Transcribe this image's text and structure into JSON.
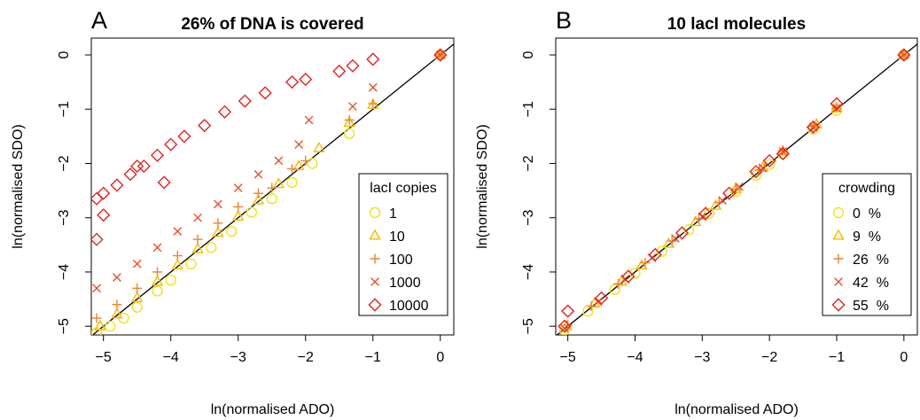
{
  "chart_data": [
    {
      "type": "scatter",
      "panel_label": "A",
      "title": "26% of DNA is covered",
      "x_label": "ln(normalised ADO)",
      "y_label": "ln(normalised SDO)",
      "xlim": [
        -5.18,
        0.2
      ],
      "ylim": [
        -5.16,
        0.31
      ],
      "xticks": [
        {
          "value": -5,
          "label": "−5"
        },
        {
          "value": -4,
          "label": "−4"
        },
        {
          "value": -3,
          "label": "−3"
        },
        {
          "value": -2,
          "label": "−2"
        },
        {
          "value": -1,
          "label": "−1"
        },
        0
      ],
      "yticks": [
        {
          "value": -5,
          "label": "−5"
        },
        {
          "value": -4,
          "label": "−4"
        },
        {
          "value": -3,
          "label": "−3"
        },
        {
          "value": -2,
          "label": "−2"
        },
        {
          "value": -1,
          "label": "−1"
        },
        0
      ],
      "reference_line": "identity",
      "legend_title": "lacI copies",
      "legend_position": "right",
      "series": [
        {
          "name": "1",
          "color": "#f2e21a",
          "marker": "circle",
          "x": [
            -5.1,
            -4.9,
            -4.7,
            -4.5,
            -4.2,
            -4,
            -3.7,
            -3.4,
            -3.1,
            -2.8,
            -2.5,
            -2.2,
            -1.9,
            -1.35,
            0
          ],
          "y": [
            -5.12,
            -5,
            -4.85,
            -4.65,
            -4.35,
            -4.15,
            -3.85,
            -3.55,
            -3.25,
            -2.9,
            -2.65,
            -2.35,
            -2,
            -1.45,
            0
          ]
        },
        {
          "name": "10",
          "color": "#f5b800",
          "marker": "triangle",
          "x": [
            -5.05,
            -4.8,
            -4.5,
            -4.2,
            -3.9,
            -3.6,
            -3.3,
            -3,
            -2.7,
            -2.4,
            -2.1,
            -1.8,
            -1.35,
            -1,
            0
          ],
          "y": [
            -5,
            -4.78,
            -4.48,
            -4.18,
            -3.88,
            -3.58,
            -3.28,
            -2.98,
            -2.68,
            -2.38,
            -2.05,
            -1.72,
            -1.25,
            -0.92,
            0
          ]
        },
        {
          "name": "100",
          "color": "#f08030",
          "marker": "plus",
          "x": [
            -5.1,
            -4.8,
            -4.5,
            -4.2,
            -3.9,
            -3.6,
            -3.3,
            -3,
            -2.7,
            -2.5,
            -2.2,
            -2,
            -1.35,
            -1,
            0
          ],
          "y": [
            -4.85,
            -4.6,
            -4.3,
            -4,
            -3.7,
            -3.4,
            -3.1,
            -2.8,
            -2.55,
            -2.45,
            -2.1,
            -1.95,
            -1.2,
            -0.9,
            0
          ]
        },
        {
          "name": "1000",
          "color": "#e8502a",
          "marker": "cross",
          "x": [
            -5.1,
            -4.8,
            -4.5,
            -4.2,
            -3.9,
            -3.6,
            -3.3,
            -3,
            -2.7,
            -2.4,
            -2.1,
            -1.95,
            -1.3,
            -1,
            0
          ],
          "y": [
            -4.3,
            -4.1,
            -3.85,
            -3.55,
            -3.25,
            -3,
            -2.75,
            -2.45,
            -2.2,
            -1.95,
            -1.65,
            -1.2,
            -0.95,
            -0.6,
            0
          ]
        },
        {
          "name": "10000",
          "color": "#e32222",
          "marker": "diamond",
          "x": [
            -5.1,
            -5,
            -4.8,
            -4.6,
            -4.4,
            -4.2,
            -4,
            -3.8,
            -3.5,
            -3.2,
            -2.9,
            -2.6,
            -2.2,
            -2,
            -1.5,
            -1.3,
            -1,
            0,
            -5.1,
            -4.5,
            -4.1,
            -5
          ],
          "y": [
            -2.65,
            -2.55,
            -2.4,
            -2.2,
            -2.05,
            -1.85,
            -1.65,
            -1.5,
            -1.3,
            -1.05,
            -0.85,
            -0.7,
            -0.5,
            -0.45,
            -0.3,
            -0.2,
            -0.08,
            0,
            -3.4,
            -2.05,
            -2.35,
            -2.95
          ]
        }
      ]
    },
    {
      "type": "scatter",
      "panel_label": "B",
      "title": "10 lacI molecules",
      "x_label": "ln(normalised ADO)",
      "y_label": "ln(normalised SDO)",
      "xlim": [
        -5.18,
        0.2
      ],
      "ylim": [
        -5.16,
        0.31
      ],
      "xticks": [
        {
          "value": -5,
          "label": "−5"
        },
        {
          "value": -4,
          "label": "−4"
        },
        {
          "value": -3,
          "label": "−3"
        },
        {
          "value": -2,
          "label": "−2"
        },
        {
          "value": -1,
          "label": "−1"
        },
        0
      ],
      "yticks": [
        {
          "value": -5,
          "label": "−5"
        },
        {
          "value": -4,
          "label": "−4"
        },
        {
          "value": -3,
          "label": "−3"
        },
        {
          "value": -2,
          "label": "−2"
        },
        {
          "value": -1,
          "label": "−1"
        },
        0
      ],
      "reference_line": "identity",
      "legend_title": "crowding",
      "legend_position": "right",
      "series": [
        {
          "name": "0  %",
          "color": "#f2e21a",
          "marker": "circle",
          "x": [
            -5.05,
            -4.7,
            -4.3,
            -4,
            -3.6,
            -3.2,
            -2.9,
            -2.5,
            -2.2,
            -2,
            -1.8,
            -1.35,
            -1,
            0
          ],
          "y": [
            -5.07,
            -4.72,
            -4.32,
            -4.02,
            -3.62,
            -3.22,
            -2.92,
            -2.52,
            -2.22,
            -2.02,
            -1.82,
            -1.37,
            -1.02,
            0
          ]
        },
        {
          "name": "9  %",
          "color": "#f5b800",
          "marker": "triangle",
          "x": [
            -5.02,
            -4.6,
            -4.2,
            -3.9,
            -3.5,
            -3.1,
            -2.8,
            -2.5,
            -2.1,
            -1.8,
            -1.3,
            -1,
            0
          ],
          "y": [
            -5,
            -4.58,
            -4.18,
            -3.88,
            -3.48,
            -3.08,
            -2.78,
            -2.47,
            -2.08,
            -1.78,
            -1.28,
            -0.98,
            0
          ]
        },
        {
          "name": "26  %",
          "color": "#f08030",
          "marker": "plus",
          "x": [
            -5,
            -4.65,
            -4.25,
            -3.85,
            -3.45,
            -3.05,
            -2.75,
            -2.5,
            -2.15,
            -1.8,
            -1.35,
            -1,
            0
          ],
          "y": [
            -4.98,
            -4.63,
            -4.22,
            -3.83,
            -3.43,
            -3.02,
            -2.72,
            -2.48,
            -2.12,
            -1.76,
            -1.32,
            -0.98,
            0
          ]
        },
        {
          "name": "42  %",
          "color": "#e8502a",
          "marker": "cross",
          "x": [
            -5.05,
            -4.55,
            -4.15,
            -3.75,
            -3.4,
            -3,
            -2.7,
            -2.45,
            -2.1,
            -1.8,
            -1.35,
            -1,
            0
          ],
          "y": [
            -5.04,
            -4.55,
            -4.13,
            -3.74,
            -3.38,
            -2.98,
            -2.68,
            -2.43,
            -2.08,
            -1.78,
            -1.33,
            -0.98,
            0
          ]
        },
        {
          "name": "55  %",
          "color": "#e32222",
          "marker": "diamond",
          "x": [
            -5.05,
            -5,
            -4.5,
            -4.1,
            -3.7,
            -3.3,
            -2.95,
            -2.6,
            -2.2,
            -2,
            -1.8,
            -1.35,
            -1,
            0
          ],
          "y": [
            -5,
            -4.72,
            -4.48,
            -4.08,
            -3.68,
            -3.28,
            -2.92,
            -2.55,
            -2.15,
            -1.95,
            -1.82,
            -1.33,
            -0.9,
            0
          ]
        }
      ]
    }
  ]
}
